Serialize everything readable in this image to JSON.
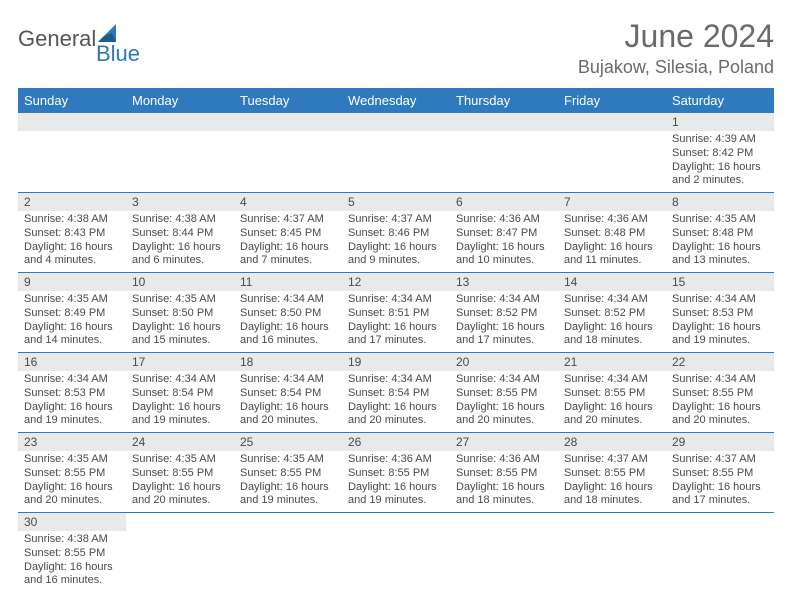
{
  "brand": {
    "part1": "General",
    "part2": "Blue"
  },
  "title": "June 2024",
  "location": "Bujakow, Silesia, Poland",
  "colors": {
    "header_bg": "#2f7abf",
    "header_fg": "#ffffff",
    "daynum_bg": "#e9e9e9",
    "text": "#4a4a4a",
    "rule": "#2f7abf",
    "logo_blue": "#2a7aba"
  },
  "typography": {
    "title_fontsize": 32,
    "location_fontsize": 18,
    "header_fontsize": 13,
    "daynum_fontsize": 12,
    "body_fontsize": 11
  },
  "weekdays": [
    "Sunday",
    "Monday",
    "Tuesday",
    "Wednesday",
    "Thursday",
    "Friday",
    "Saturday"
  ],
  "weeks": [
    [
      null,
      null,
      null,
      null,
      null,
      null,
      {
        "n": "1",
        "sr": "Sunrise: 4:39 AM",
        "ss": "Sunset: 8:42 PM",
        "d1": "Daylight: 16 hours",
        "d2": "and 2 minutes."
      }
    ],
    [
      {
        "n": "2",
        "sr": "Sunrise: 4:38 AM",
        "ss": "Sunset: 8:43 PM",
        "d1": "Daylight: 16 hours",
        "d2": "and 4 minutes."
      },
      {
        "n": "3",
        "sr": "Sunrise: 4:38 AM",
        "ss": "Sunset: 8:44 PM",
        "d1": "Daylight: 16 hours",
        "d2": "and 6 minutes."
      },
      {
        "n": "4",
        "sr": "Sunrise: 4:37 AM",
        "ss": "Sunset: 8:45 PM",
        "d1": "Daylight: 16 hours",
        "d2": "and 7 minutes."
      },
      {
        "n": "5",
        "sr": "Sunrise: 4:37 AM",
        "ss": "Sunset: 8:46 PM",
        "d1": "Daylight: 16 hours",
        "d2": "and 9 minutes."
      },
      {
        "n": "6",
        "sr": "Sunrise: 4:36 AM",
        "ss": "Sunset: 8:47 PM",
        "d1": "Daylight: 16 hours",
        "d2": "and 10 minutes."
      },
      {
        "n": "7",
        "sr": "Sunrise: 4:36 AM",
        "ss": "Sunset: 8:48 PM",
        "d1": "Daylight: 16 hours",
        "d2": "and 11 minutes."
      },
      {
        "n": "8",
        "sr": "Sunrise: 4:35 AM",
        "ss": "Sunset: 8:48 PM",
        "d1": "Daylight: 16 hours",
        "d2": "and 13 minutes."
      }
    ],
    [
      {
        "n": "9",
        "sr": "Sunrise: 4:35 AM",
        "ss": "Sunset: 8:49 PM",
        "d1": "Daylight: 16 hours",
        "d2": "and 14 minutes."
      },
      {
        "n": "10",
        "sr": "Sunrise: 4:35 AM",
        "ss": "Sunset: 8:50 PM",
        "d1": "Daylight: 16 hours",
        "d2": "and 15 minutes."
      },
      {
        "n": "11",
        "sr": "Sunrise: 4:34 AM",
        "ss": "Sunset: 8:50 PM",
        "d1": "Daylight: 16 hours",
        "d2": "and 16 minutes."
      },
      {
        "n": "12",
        "sr": "Sunrise: 4:34 AM",
        "ss": "Sunset: 8:51 PM",
        "d1": "Daylight: 16 hours",
        "d2": "and 17 minutes."
      },
      {
        "n": "13",
        "sr": "Sunrise: 4:34 AM",
        "ss": "Sunset: 8:52 PM",
        "d1": "Daylight: 16 hours",
        "d2": "and 17 minutes."
      },
      {
        "n": "14",
        "sr": "Sunrise: 4:34 AM",
        "ss": "Sunset: 8:52 PM",
        "d1": "Daylight: 16 hours",
        "d2": "and 18 minutes."
      },
      {
        "n": "15",
        "sr": "Sunrise: 4:34 AM",
        "ss": "Sunset: 8:53 PM",
        "d1": "Daylight: 16 hours",
        "d2": "and 19 minutes."
      }
    ],
    [
      {
        "n": "16",
        "sr": "Sunrise: 4:34 AM",
        "ss": "Sunset: 8:53 PM",
        "d1": "Daylight: 16 hours",
        "d2": "and 19 minutes."
      },
      {
        "n": "17",
        "sr": "Sunrise: 4:34 AM",
        "ss": "Sunset: 8:54 PM",
        "d1": "Daylight: 16 hours",
        "d2": "and 19 minutes."
      },
      {
        "n": "18",
        "sr": "Sunrise: 4:34 AM",
        "ss": "Sunset: 8:54 PM",
        "d1": "Daylight: 16 hours",
        "d2": "and 20 minutes."
      },
      {
        "n": "19",
        "sr": "Sunrise: 4:34 AM",
        "ss": "Sunset: 8:54 PM",
        "d1": "Daylight: 16 hours",
        "d2": "and 20 minutes."
      },
      {
        "n": "20",
        "sr": "Sunrise: 4:34 AM",
        "ss": "Sunset: 8:55 PM",
        "d1": "Daylight: 16 hours",
        "d2": "and 20 minutes."
      },
      {
        "n": "21",
        "sr": "Sunrise: 4:34 AM",
        "ss": "Sunset: 8:55 PM",
        "d1": "Daylight: 16 hours",
        "d2": "and 20 minutes."
      },
      {
        "n": "22",
        "sr": "Sunrise: 4:34 AM",
        "ss": "Sunset: 8:55 PM",
        "d1": "Daylight: 16 hours",
        "d2": "and 20 minutes."
      }
    ],
    [
      {
        "n": "23",
        "sr": "Sunrise: 4:35 AM",
        "ss": "Sunset: 8:55 PM",
        "d1": "Daylight: 16 hours",
        "d2": "and 20 minutes."
      },
      {
        "n": "24",
        "sr": "Sunrise: 4:35 AM",
        "ss": "Sunset: 8:55 PM",
        "d1": "Daylight: 16 hours",
        "d2": "and 20 minutes."
      },
      {
        "n": "25",
        "sr": "Sunrise: 4:35 AM",
        "ss": "Sunset: 8:55 PM",
        "d1": "Daylight: 16 hours",
        "d2": "and 19 minutes."
      },
      {
        "n": "26",
        "sr": "Sunrise: 4:36 AM",
        "ss": "Sunset: 8:55 PM",
        "d1": "Daylight: 16 hours",
        "d2": "and 19 minutes."
      },
      {
        "n": "27",
        "sr": "Sunrise: 4:36 AM",
        "ss": "Sunset: 8:55 PM",
        "d1": "Daylight: 16 hours",
        "d2": "and 18 minutes."
      },
      {
        "n": "28",
        "sr": "Sunrise: 4:37 AM",
        "ss": "Sunset: 8:55 PM",
        "d1": "Daylight: 16 hours",
        "d2": "and 18 minutes."
      },
      {
        "n": "29",
        "sr": "Sunrise: 4:37 AM",
        "ss": "Sunset: 8:55 PM",
        "d1": "Daylight: 16 hours",
        "d2": "and 17 minutes."
      }
    ],
    [
      {
        "n": "30",
        "sr": "Sunrise: 4:38 AM",
        "ss": "Sunset: 8:55 PM",
        "d1": "Daylight: 16 hours",
        "d2": "and 16 minutes."
      },
      null,
      null,
      null,
      null,
      null,
      null
    ]
  ]
}
